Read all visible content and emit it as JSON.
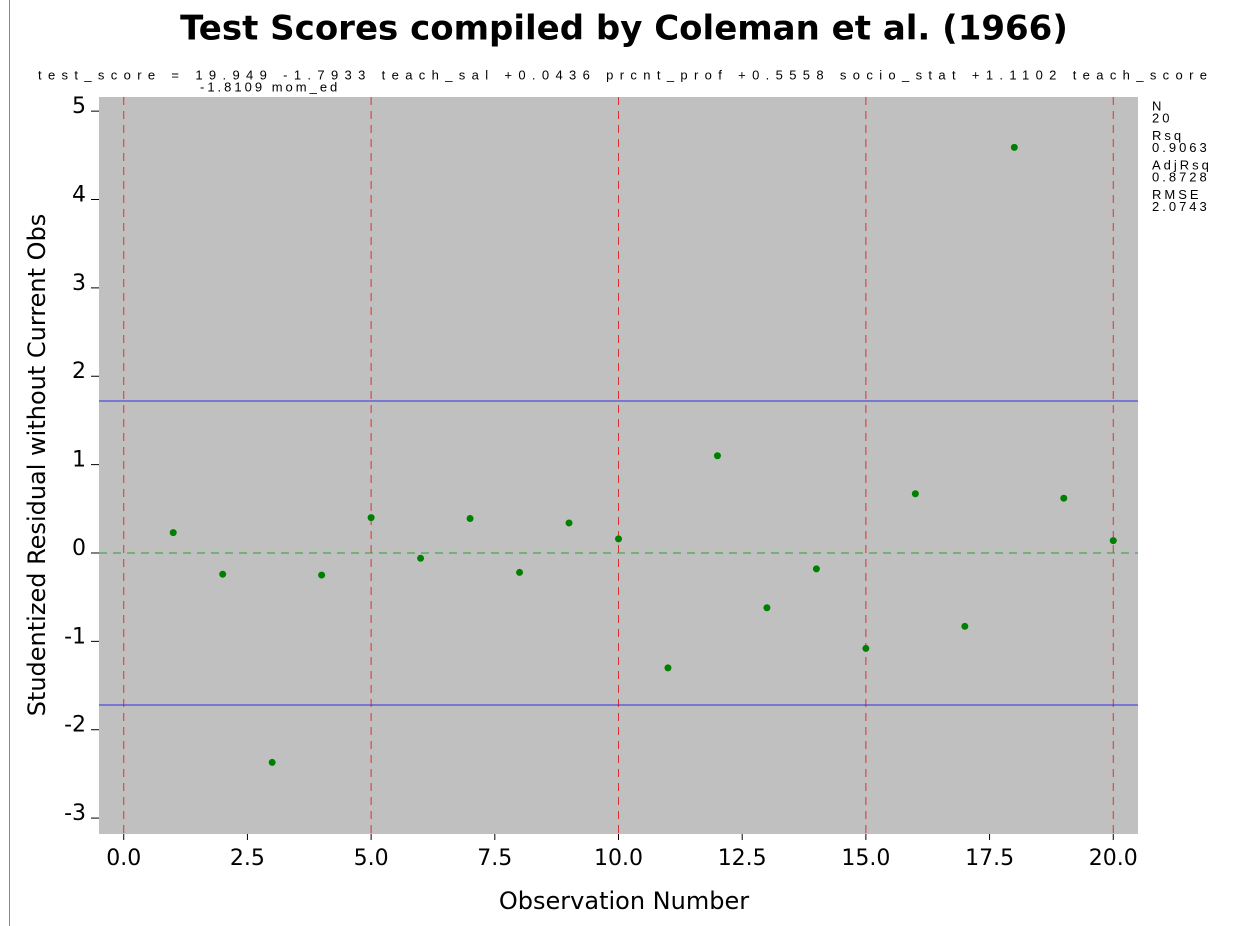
{
  "chart_data": {
    "type": "scatter",
    "title": "Test Scores compiled by Coleman et al. (1966)",
    "subtitle": [
      "test_score = 19.949 -1.7933 teach_sal +0.0436 prcnt_prof +0.5558 socio_stat +1.1102 teach_score",
      "-1.8109 mom_ed"
    ],
    "x_label": "Observation Number",
    "y_label": "Studentized Residual without Current Obs",
    "x": [
      1,
      2,
      3,
      4,
      5,
      6,
      7,
      8,
      9,
      10,
      11,
      12,
      13,
      14,
      15,
      16,
      17,
      18,
      19,
      20
    ],
    "series": [
      {
        "color": "#008000",
        "values": [
          0.23,
          -0.24,
          -2.37,
          -0.25,
          0.4,
          -0.06,
          0.39,
          -0.22,
          0.34,
          0.16,
          -1.3,
          1.1,
          -0.62,
          -0.18,
          -1.08,
          0.67,
          -0.83,
          4.59,
          0.62,
          0.14
        ]
      }
    ],
    "xlim": [
      -0.5,
      20.5
    ],
    "ylim": [
      -3.18,
      5.16
    ],
    "xticks": [
      {
        "value": 0,
        "label": "0.0"
      },
      {
        "value": 2.5,
        "label": "2.5"
      },
      {
        "value": 5,
        "label": "5.0"
      },
      {
        "value": 7.5,
        "label": "7.5"
      },
      {
        "value": 10,
        "label": "10.0"
      },
      {
        "value": 12.5,
        "label": "12.5"
      },
      {
        "value": 15,
        "label": "15.0"
      },
      {
        "value": 17.5,
        "label": "17.5"
      },
      {
        "value": 20,
        "label": "20.0"
      }
    ],
    "yticks": [
      -3,
      -2,
      -1,
      0,
      1,
      2,
      3,
      4,
      5
    ],
    "reference_lines_x": {
      "values": [
        0,
        5,
        10,
        15,
        20
      ],
      "color": "#e03030"
    },
    "reference_lines_y": [
      {
        "value": 1.72,
        "color": "#3030e0"
      },
      {
        "value": -1.72,
        "color": "#3030e0"
      },
      {
        "value": 0,
        "color": "#30a030"
      }
    ],
    "background": "#c0c0c0",
    "stats": [
      {
        "label": "N",
        "value": 20
      },
      {
        "label": "Rsq",
        "value": 0.9063
      },
      {
        "label": "AdjRsq",
        "value": 0.8728
      },
      {
        "label": "RMSE",
        "value": 2.0743
      }
    ]
  }
}
